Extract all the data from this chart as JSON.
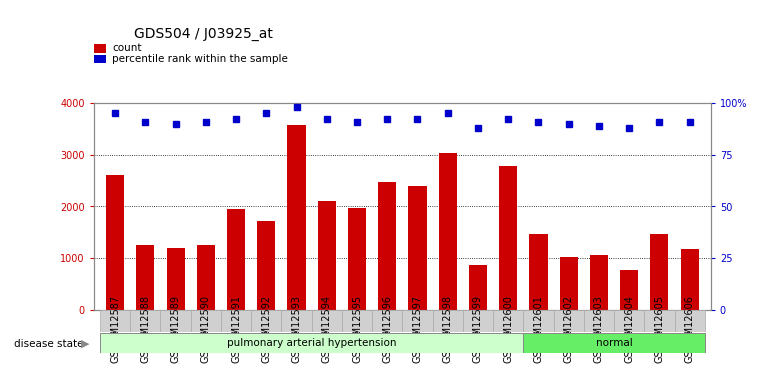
{
  "title": "GDS504 / J03925_at",
  "samples": [
    "GSM12587",
    "GSM12588",
    "GSM12589",
    "GSM12590",
    "GSM12591",
    "GSM12592",
    "GSM12593",
    "GSM12594",
    "GSM12595",
    "GSM12596",
    "GSM12597",
    "GSM12598",
    "GSM12599",
    "GSM12600",
    "GSM12601",
    "GSM12602",
    "GSM12603",
    "GSM12604",
    "GSM12605",
    "GSM12606"
  ],
  "counts": [
    2600,
    1250,
    1200,
    1250,
    1950,
    1720,
    3580,
    2100,
    1960,
    2480,
    2400,
    3040,
    870,
    2780,
    1470,
    1020,
    1060,
    780,
    1470,
    1170
  ],
  "percentile_ranks": [
    95,
    91,
    90,
    91,
    92,
    95,
    98,
    92,
    91,
    92,
    92,
    95,
    88,
    92,
    91,
    90,
    89,
    88,
    91,
    91
  ],
  "bar_color": "#cc0000",
  "dot_color": "#0000cc",
  "ylim_left": [
    0,
    4000
  ],
  "ylim_right": [
    0,
    100
  ],
  "yticks_left": [
    0,
    1000,
    2000,
    3000,
    4000
  ],
  "ytick_labels_left": [
    "0",
    "1000",
    "2000",
    "3000",
    "4000"
  ],
  "yticks_right": [
    0,
    25,
    50,
    75,
    100
  ],
  "ytick_labels_right": [
    "0",
    "25",
    "50",
    "75",
    "100%"
  ],
  "group1_label": "pulmonary arterial hypertension",
  "group2_label": "normal",
  "group1_count": 14,
  "group2_count": 6,
  "group1_color": "#ccffcc",
  "group2_color": "#66ee66",
  "disease_state_label": "disease state",
  "legend_count_label": "count",
  "legend_pct_label": "percentile rank within the sample",
  "bg_color": "#ffffff",
  "plot_bg_color": "#ffffff",
  "title_fontsize": 10,
  "tick_fontsize": 7,
  "bar_width": 0.6
}
